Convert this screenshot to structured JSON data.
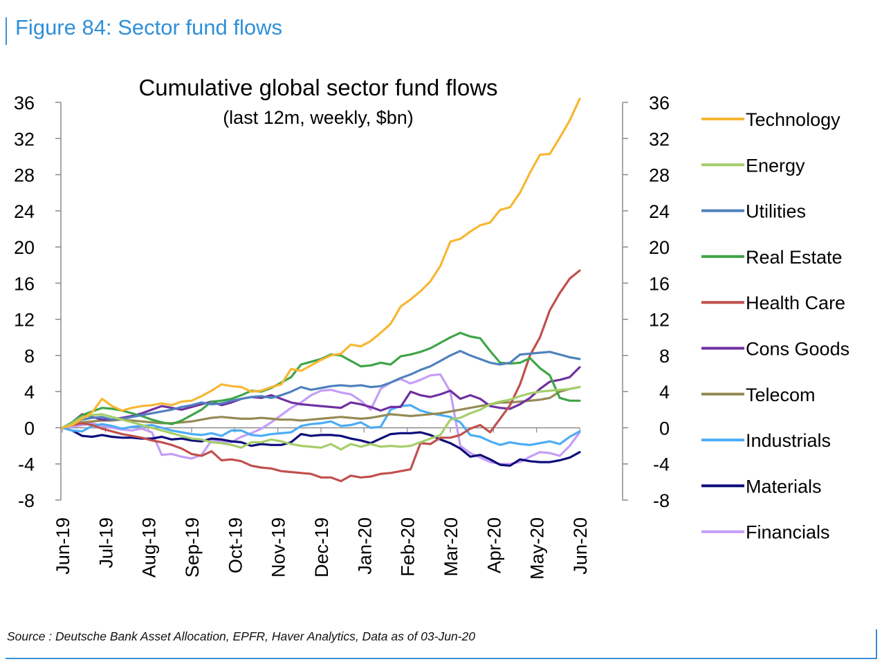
{
  "figure": {
    "title": "Figure 84: Sector fund flows",
    "source": "Source : Deutsche Bank Asset Allocation, EPFR, Haver Analytics, Data as of 03-Jun-20"
  },
  "chart_data": {
    "type": "line",
    "title": "Cumulative global sector fund flows",
    "subtitle": "(last 12m, weekly, $bn)",
    "xlabel": "",
    "ylabel": "",
    "ylim": [
      -8,
      36
    ],
    "yticks": [
      "36",
      "32",
      "28",
      "24",
      "20",
      "16",
      "12",
      "8",
      "4",
      "0",
      "-4",
      "-8"
    ],
    "ytick_values": [
      36,
      32,
      28,
      24,
      20,
      16,
      12,
      8,
      4,
      0,
      -4,
      -8
    ],
    "x_labels": [
      "Jun-19",
      "Jul-19",
      "Aug-19",
      "Sep-19",
      "Oct-19",
      "Nov-19",
      "Dec-19",
      "Jan-20",
      "Feb-20",
      "Mar-20",
      "Apr-20",
      "May-20",
      "Jun-20"
    ],
    "weeks": 53,
    "legend_position": "right",
    "series": [
      {
        "name": "Technology",
        "color": "#f7b733",
        "values": [
          0,
          0.3,
          1.0,
          1.7,
          3.2,
          2.4,
          1.9,
          2.2,
          2.4,
          2.5,
          2.7,
          2.5,
          2.9,
          3.0,
          3.5,
          4.1,
          4.8,
          4.6,
          4.5,
          4.0,
          4.1,
          4.5,
          4.8,
          6.5,
          6.3,
          6.9,
          7.5,
          8.0,
          8.2,
          9.2,
          9.0,
          9.6,
          10.5,
          11.5,
          13.4,
          14.2,
          15.1,
          16.2,
          17.9,
          20.6,
          20.9,
          21.7,
          22.4,
          22.7,
          24.1,
          24.4,
          26.0,
          28.2,
          30.2,
          30.3,
          32.1,
          34.0,
          36.4
        ]
      },
      {
        "name": "Energy",
        "color": "#a5ce6a",
        "values": [
          0,
          0.5,
          1.2,
          1.4,
          1.5,
          1.2,
          0.9,
          0.6,
          0.3,
          0.0,
          -0.3,
          -0.6,
          -0.9,
          -1.2,
          -1.3,
          -1.6,
          -1.7,
          -1.9,
          -2.2,
          -1.6,
          -1.6,
          -1.3,
          -1.5,
          -1.8,
          -2.0,
          -2.1,
          -2.2,
          -1.8,
          -2.4,
          -1.8,
          -2.1,
          -1.8,
          -2.1,
          -2.0,
          -2.1,
          -2.0,
          -1.6,
          -1.2,
          -0.8,
          0.9,
          1.1,
          1.6,
          2.0,
          2.6,
          2.9,
          3.1,
          3.5,
          3.8,
          4.0,
          4.1,
          4.2,
          4.3,
          4.5
        ]
      },
      {
        "name": "Utilities",
        "color": "#4f81bd",
        "values": [
          0,
          0.4,
          0.9,
          1.1,
          1.2,
          0.9,
          1.0,
          1.2,
          1.4,
          1.6,
          1.8,
          2.0,
          2.3,
          2.5,
          2.8,
          2.6,
          2.7,
          3.0,
          3.2,
          3.4,
          3.5,
          3.3,
          3.6,
          4.0,
          4.5,
          4.2,
          4.4,
          4.6,
          4.7,
          4.6,
          4.7,
          4.5,
          4.6,
          5.0,
          5.5,
          5.9,
          6.4,
          6.8,
          7.4,
          8.0,
          8.5,
          8.0,
          7.6,
          7.2,
          7.0,
          7.2,
          8.1,
          8.2,
          8.3,
          8.4,
          8.1,
          7.8,
          7.6
        ]
      },
      {
        "name": "Real Estate",
        "color": "#3fa548",
        "values": [
          0,
          0.6,
          1.4,
          1.8,
          2.2,
          2.1,
          1.9,
          1.6,
          1.3,
          0.9,
          0.6,
          0.4,
          0.8,
          1.4,
          2.0,
          2.9,
          3.0,
          3.2,
          3.6,
          4.1,
          4.0,
          4.4,
          5.0,
          5.6,
          7.0,
          7.3,
          7.6,
          8.1,
          8.0,
          7.4,
          6.8,
          6.9,
          7.2,
          7.0,
          7.9,
          8.1,
          8.4,
          8.8,
          9.4,
          10.0,
          10.5,
          10.1,
          9.9,
          8.5,
          7.2,
          7.1,
          7.2,
          7.7,
          6.6,
          5.8,
          3.3,
          3.0,
          3.0
        ]
      },
      {
        "name": "Health Care",
        "color": "#c0504d",
        "values": [
          0,
          0.3,
          0.5,
          0.3,
          -0.1,
          -0.4,
          -0.7,
          -0.9,
          -1.1,
          -1.4,
          -1.6,
          -1.9,
          -2.3,
          -2.9,
          -3.1,
          -2.6,
          -3.6,
          -3.5,
          -3.7,
          -4.2,
          -4.4,
          -4.5,
          -4.8,
          -4.9,
          -5.0,
          -5.1,
          -5.5,
          -5.5,
          -5.9,
          -5.3,
          -5.5,
          -5.4,
          -5.1,
          -5.0,
          -4.8,
          -4.6,
          -1.7,
          -1.8,
          -1.1,
          -1.1,
          -0.8,
          -0.1,
          0.3,
          -0.5,
          1.0,
          2.5,
          4.8,
          8.0,
          10.0,
          13.0,
          14.9,
          16.5,
          17.4
        ]
      },
      {
        "name": "Cons Goods",
        "color": "#7030a0",
        "values": [
          0,
          0.6,
          1.5,
          1.2,
          0.9,
          0.9,
          1.1,
          1.3,
          1.6,
          2.0,
          2.4,
          2.2,
          2.0,
          2.3,
          2.6,
          2.9,
          2.5,
          2.8,
          3.2,
          3.4,
          3.3,
          3.6,
          3.2,
          2.8,
          2.6,
          2.5,
          2.4,
          2.3,
          2.2,
          2.8,
          2.6,
          2.3,
          1.9,
          2.3,
          2.3,
          4.0,
          3.6,
          3.4,
          3.7,
          4.1,
          3.2,
          3.6,
          3.2,
          2.4,
          2.2,
          2.1,
          2.6,
          3.3,
          4.3,
          5.1,
          5.3,
          5.6,
          6.7
        ]
      },
      {
        "name": "Telecom",
        "color": "#948a54",
        "values": [
          0,
          0.3,
          0.6,
          0.7,
          0.8,
          0.8,
          0.9,
          0.8,
          0.7,
          0.6,
          0.5,
          0.5,
          0.6,
          0.7,
          0.9,
          1.1,
          1.2,
          1.1,
          1.0,
          1.0,
          1.1,
          1.0,
          0.9,
          0.9,
          0.8,
          0.9,
          1.0,
          1.1,
          1.2,
          1.1,
          1.0,
          1.1,
          1.3,
          1.5,
          1.4,
          1.3,
          1.4,
          1.5,
          1.6,
          1.8,
          2.0,
          2.2,
          2.4,
          2.6,
          2.8,
          2.8,
          2.9,
          3.0,
          3.1,
          3.3,
          4.0,
          4.3,
          4.5
        ]
      },
      {
        "name": "Industrials",
        "color": "#4bacf6",
        "values": [
          0,
          -0.3,
          -0.4,
          0.2,
          0.4,
          0.2,
          -0.1,
          0.1,
          0.2,
          0.3,
          0.0,
          -0.3,
          -0.5,
          -0.7,
          -0.8,
          -0.6,
          -0.9,
          -0.3,
          -0.3,
          -0.8,
          -0.9,
          -0.7,
          -0.6,
          -0.5,
          0.2,
          0.4,
          0.5,
          0.7,
          0.2,
          0.3,
          0.6,
          0.0,
          0.1,
          2.0,
          2.4,
          2.5,
          1.9,
          1.6,
          1.4,
          1.2,
          0.6,
          -0.8,
          -1.0,
          -1.5,
          -1.9,
          -1.6,
          -1.8,
          -1.9,
          -1.7,
          -1.5,
          -1.8,
          -1.0,
          -0.4
        ]
      },
      {
        "name": "Materials",
        "color": "#0c0c7a",
        "values": [
          0,
          -0.3,
          -0.9,
          -1.0,
          -0.8,
          -1.0,
          -1.1,
          -1.1,
          -1.2,
          -1.2,
          -1.0,
          -1.3,
          -1.2,
          -1.4,
          -1.5,
          -1.2,
          -1.3,
          -1.5,
          -1.6,
          -2.0,
          -1.8,
          -1.9,
          -1.9,
          -1.6,
          -0.7,
          -0.9,
          -0.8,
          -0.8,
          -0.9,
          -1.2,
          -1.4,
          -1.7,
          -1.2,
          -0.7,
          -0.6,
          -0.6,
          -0.5,
          -0.8,
          -1.3,
          -1.7,
          -2.3,
          -3.2,
          -3.0,
          -3.5,
          -4.1,
          -4.2,
          -3.5,
          -3.7,
          -3.8,
          -3.8,
          -3.6,
          -3.3,
          -2.7
        ]
      },
      {
        "name": "Financials",
        "color": "#c59df8",
        "values": [
          0,
          0.1,
          0.3,
          0.5,
          0.2,
          0.0,
          -0.2,
          -0.3,
          -0.1,
          -0.5,
          -3.0,
          -2.9,
          -3.2,
          -3.4,
          -3.0,
          -1.4,
          -1.5,
          -1.6,
          -1.0,
          -0.6,
          -0.1,
          0.6,
          1.4,
          2.2,
          2.8,
          3.6,
          4.1,
          4.2,
          3.9,
          3.7,
          3.0,
          2.0,
          4.3,
          5.0,
          5.4,
          4.9,
          5.3,
          5.8,
          5.9,
          4.0,
          -2.0,
          -2.8,
          -3.3,
          -3.8,
          -4.0,
          -4.0,
          -3.8,
          -3.2,
          -2.7,
          -2.8,
          -3.1,
          -2.0,
          -0.5
        ]
      }
    ]
  }
}
